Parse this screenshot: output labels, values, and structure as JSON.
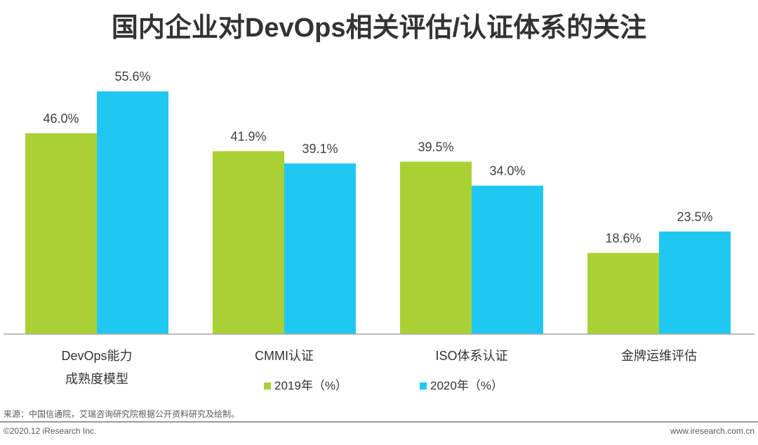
{
  "chart_data": {
    "type": "bar",
    "title": "国内企业对DevOps相关评估/认证体系的关注",
    "categories": [
      "DevOps能力\n成熟度模型",
      "CMMI认证",
      "ISO体系认证",
      "金牌运维评估"
    ],
    "series": [
      {
        "name": "2019年（%）",
        "values": [
          46.0,
          41.9,
          39.5,
          18.6
        ],
        "labels": [
          "46.0%",
          "41.9%",
          "39.5%",
          "18.6%"
        ],
        "color": "#a9d134"
      },
      {
        "name": "2020年（%）",
        "values": [
          55.6,
          39.1,
          34.0,
          23.5
        ],
        "labels": [
          "55.6%",
          "39.1%",
          "34.0%",
          "23.5%"
        ],
        "color": "#1fc7f1"
      }
    ]
  },
  "source": "来源：中国信通院，艾瑞咨询研究院根据公开资料研究及绘制。",
  "footer": {
    "copyright": "©2020.12 iResearch Inc.",
    "website": "www.iresearch.com.cn"
  }
}
